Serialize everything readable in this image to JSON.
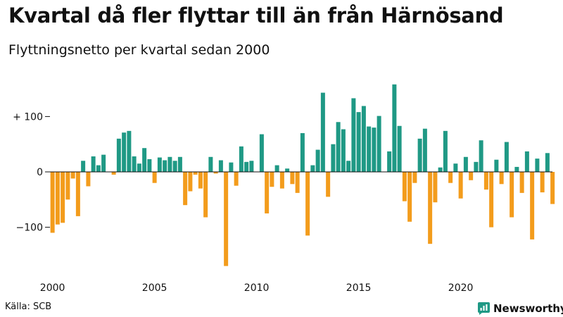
{
  "title": "Kvartal då fler flyttar till än från Härnösand",
  "subtitle": "Flyttningsnetto per kvartal sedan 2000",
  "source": "Källa: SCB",
  "brand": {
    "name": "Newsworthy",
    "icon": "newsworthy-logo-icon"
  },
  "colors": {
    "positive": "#1f9985",
    "negative": "#f39c1c",
    "text": "#111111",
    "brand": "#1f9985"
  },
  "chart_data": {
    "type": "bar",
    "title": "Kvartal då fler flyttar till än från Härnösand",
    "subtitle": "Flyttningsnetto per kvartal sedan 2000",
    "xlabel": "",
    "ylabel": "",
    "start_year": 2000,
    "periods_per_year": 4,
    "ylim": [
      -170,
      160
    ],
    "grid": false,
    "y_ticks": [
      {
        "value": 100,
        "label": "+ 100"
      },
      {
        "value": 0,
        "label": "0"
      },
      {
        "value": -100,
        "label": "−100"
      }
    ],
    "x_ticks": [
      {
        "year": 2000,
        "label": "2000"
      },
      {
        "year": 2005,
        "label": "2005"
      },
      {
        "year": 2010,
        "label": "2010"
      },
      {
        "year": 2015,
        "label": "2015"
      },
      {
        "year": 2020,
        "label": "2020"
      }
    ],
    "values": [
      -110,
      -95,
      -92,
      -50,
      -12,
      -80,
      20,
      -26,
      28,
      12,
      31,
      0,
      -5,
      60,
      71,
      74,
      28,
      15,
      43,
      23,
      -20,
      26,
      21,
      27,
      20,
      27,
      -60,
      -35,
      -5,
      -30,
      -82,
      27,
      -3,
      21,
      -170,
      17,
      -25,
      46,
      18,
      20,
      0,
      68,
      -75,
      -27,
      12,
      -30,
      6,
      -22,
      -38,
      70,
      -115,
      12,
      40,
      143,
      -45,
      50,
      90,
      77,
      20,
      133,
      108,
      119,
      82,
      80,
      101,
      0,
      37,
      158,
      83,
      -53,
      -90,
      -20,
      60,
      78,
      -130,
      -55,
      8,
      74,
      -20,
      15,
      -48,
      27,
      -15,
      18,
      57,
      -32,
      -100,
      22,
      -22,
      54,
      -82,
      9,
      -38,
      37,
      -122,
      24,
      -37,
      34,
      -58
    ]
  }
}
